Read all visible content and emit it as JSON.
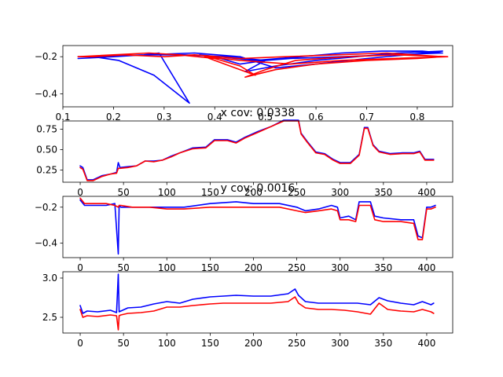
{
  "chart_data": [
    {
      "type": "line",
      "title": "",
      "xlabel": "",
      "ylabel": "",
      "xlim": [
        0.1,
        0.87
      ],
      "ylim": [
        -0.47,
        -0.14
      ],
      "xticks": [
        0.1,
        0.2,
        0.3,
        0.4,
        0.5,
        0.6,
        0.7,
        0.8
      ],
      "xticklabels": [
        "0.1",
        "0.2",
        "0.3",
        "0.4",
        "0.5",
        "0.6",
        "0.7",
        "0.8"
      ],
      "yticks": [
        -0.4,
        -0.2
      ],
      "yticklabels": [
        "−0.4",
        "−0.2"
      ],
      "grid": false,
      "series": [
        {
          "color": "#0000ff",
          "x": [
            0.13,
            0.2,
            0.26,
            0.29,
            0.35,
            0.28,
            0.21,
            0.16,
            0.26,
            0.36,
            0.45,
            0.52,
            0.6,
            0.7,
            0.78,
            0.85,
            0.76,
            0.68,
            0.6,
            0.52,
            0.46,
            0.5,
            0.45,
            0.4,
            0.37,
            0.48,
            0.57,
            0.65,
            0.73,
            0.81,
            0.85,
            0.75,
            0.65,
            0.55,
            0.5,
            0.42,
            0.34,
            0.26,
            0.2,
            0.15,
            0.13
          ],
          "y": [
            -0.21,
            -0.2,
            -0.19,
            -0.18,
            -0.45,
            -0.3,
            -0.22,
            -0.2,
            -0.19,
            -0.18,
            -0.2,
            -0.26,
            -0.24,
            -0.21,
            -0.19,
            -0.17,
            -0.18,
            -0.2,
            -0.22,
            -0.25,
            -0.28,
            -0.22,
            -0.24,
            -0.2,
            -0.19,
            -0.22,
            -0.2,
            -0.18,
            -0.17,
            -0.17,
            -0.18,
            -0.19,
            -0.2,
            -0.21,
            -0.22,
            -0.2,
            -0.19,
            -0.19,
            -0.2,
            -0.2,
            -0.2
          ]
        },
        {
          "color": "#ff0000",
          "x": [
            0.13,
            0.2,
            0.27,
            0.33,
            0.4,
            0.45,
            0.48,
            0.44,
            0.38,
            0.45,
            0.55,
            0.65,
            0.75,
            0.86,
            0.76,
            0.66,
            0.56,
            0.5,
            0.46,
            0.52,
            0.6,
            0.7,
            0.8,
            0.85,
            0.74,
            0.64,
            0.54,
            0.45,
            0.36,
            0.3,
            0.22,
            0.16,
            0.13
          ],
          "y": [
            -0.2,
            -0.19,
            -0.18,
            -0.19,
            -0.21,
            -0.25,
            -0.3,
            -0.26,
            -0.2,
            -0.22,
            -0.24,
            -0.22,
            -0.21,
            -0.2,
            -0.19,
            -0.2,
            -0.22,
            -0.27,
            -0.31,
            -0.27,
            -0.24,
            -0.22,
            -0.21,
            -0.2,
            -0.18,
            -0.19,
            -0.2,
            -0.21,
            -0.19,
            -0.2,
            -0.19,
            -0.2,
            -0.2
          ]
        }
      ]
    },
    {
      "type": "line",
      "title": "x cov: 0.0338",
      "xlabel": "",
      "ylabel": "",
      "xlim": [
        -20,
        430
      ],
      "ylim": [
        0.1,
        0.85
      ],
      "xticks": [
        0,
        50,
        100,
        150,
        200,
        250,
        300,
        350,
        400
      ],
      "xticklabels": [
        "0",
        "50",
        "100",
        "150",
        "200",
        "250",
        "300",
        "350",
        "400"
      ],
      "yticks": [
        0.25,
        0.5,
        0.75
      ],
      "yticklabels": [
        "0.25",
        "0.50",
        "0.75"
      ],
      "grid": false,
      "series": [
        {
          "color": "#0000ff",
          "x": [
            0,
            3,
            8,
            15,
            25,
            35,
            42,
            44,
            46,
            55,
            65,
            75,
            85,
            95,
            105,
            115,
            130,
            145,
            155,
            170,
            180,
            190,
            205,
            220,
            235,
            248,
            252,
            255,
            262,
            272,
            282,
            292,
            300,
            312,
            322,
            328,
            332,
            338,
            345,
            358,
            372,
            385,
            392,
            398,
            408
          ],
          "y": [
            0.3,
            0.28,
            0.13,
            0.13,
            0.18,
            0.2,
            0.22,
            0.34,
            0.28,
            0.29,
            0.3,
            0.36,
            0.36,
            0.37,
            0.42,
            0.46,
            0.52,
            0.53,
            0.62,
            0.62,
            0.59,
            0.65,
            0.72,
            0.78,
            0.86,
            0.86,
            0.86,
            0.7,
            0.6,
            0.47,
            0.45,
            0.38,
            0.34,
            0.34,
            0.44,
            0.77,
            0.77,
            0.56,
            0.48,
            0.45,
            0.46,
            0.46,
            0.48,
            0.38,
            0.38
          ]
        },
        {
          "color": "#ff0000",
          "x": [
            0,
            3,
            8,
            15,
            25,
            35,
            42,
            44,
            46,
            55,
            65,
            75,
            85,
            95,
            105,
            115,
            130,
            145,
            155,
            170,
            180,
            190,
            205,
            220,
            235,
            248,
            252,
            255,
            262,
            272,
            282,
            292,
            300,
            312,
            322,
            328,
            332,
            338,
            345,
            358,
            372,
            385,
            392,
            398,
            408
          ],
          "y": [
            0.28,
            0.26,
            0.12,
            0.12,
            0.17,
            0.2,
            0.21,
            0.27,
            0.27,
            0.28,
            0.3,
            0.36,
            0.35,
            0.37,
            0.41,
            0.46,
            0.51,
            0.52,
            0.61,
            0.61,
            0.58,
            0.64,
            0.71,
            0.78,
            0.85,
            0.85,
            0.85,
            0.69,
            0.59,
            0.46,
            0.44,
            0.37,
            0.33,
            0.33,
            0.43,
            0.76,
            0.76,
            0.55,
            0.47,
            0.44,
            0.45,
            0.45,
            0.47,
            0.37,
            0.37
          ]
        }
      ]
    },
    {
      "type": "line",
      "title": "y cov: 0.0016",
      "xlabel": "",
      "ylabel": "",
      "xlim": [
        -20,
        430
      ],
      "ylim": [
        -0.48,
        -0.14
      ],
      "xticks": [
        0,
        50,
        100,
        150,
        200,
        250,
        300,
        350,
        400
      ],
      "xticklabels": [
        "0",
        "50",
        "100",
        "150",
        "200",
        "250",
        "300",
        "350",
        "400"
      ],
      "yticks": [
        -0.4,
        -0.2
      ],
      "yticklabels": [
        "−0.4",
        "−0.2"
      ],
      "grid": false,
      "series": [
        {
          "color": "#0000ff",
          "x": [
            0,
            5,
            15,
            30,
            40,
            44,
            45,
            47,
            60,
            80,
            100,
            120,
            150,
            180,
            200,
            230,
            250,
            260,
            275,
            290,
            297,
            300,
            310,
            318,
            322,
            335,
            340,
            350,
            370,
            385,
            390,
            395,
            400,
            405,
            410
          ],
          "y": [
            -0.16,
            -0.19,
            -0.19,
            -0.19,
            -0.18,
            -0.46,
            -0.19,
            -0.2,
            -0.2,
            -0.2,
            -0.2,
            -0.2,
            -0.18,
            -0.17,
            -0.18,
            -0.18,
            -0.2,
            -0.22,
            -0.21,
            -0.19,
            -0.2,
            -0.26,
            -0.25,
            -0.27,
            -0.17,
            -0.17,
            -0.25,
            -0.26,
            -0.27,
            -0.27,
            -0.36,
            -0.37,
            -0.2,
            -0.2,
            -0.19
          ]
        },
        {
          "color": "#ff0000",
          "x": [
            0,
            5,
            15,
            30,
            40,
            44,
            45,
            47,
            60,
            80,
            100,
            120,
            150,
            180,
            200,
            230,
            250,
            260,
            275,
            290,
            297,
            300,
            310,
            318,
            322,
            335,
            340,
            350,
            370,
            385,
            390,
            395,
            400,
            405,
            410
          ],
          "y": [
            -0.15,
            -0.18,
            -0.18,
            -0.18,
            -0.19,
            -0.2,
            -0.19,
            -0.19,
            -0.2,
            -0.2,
            -0.21,
            -0.21,
            -0.2,
            -0.2,
            -0.2,
            -0.2,
            -0.22,
            -0.23,
            -0.22,
            -0.21,
            -0.22,
            -0.27,
            -0.27,
            -0.28,
            -0.19,
            -0.19,
            -0.27,
            -0.28,
            -0.28,
            -0.29,
            -0.38,
            -0.38,
            -0.21,
            -0.21,
            -0.2
          ]
        }
      ]
    },
    {
      "type": "line",
      "title": "",
      "xlabel": "",
      "ylabel": "",
      "xlim": [
        -20,
        430
      ],
      "ylim": [
        2.3,
        3.08
      ],
      "xticks": [
        0,
        50,
        100,
        150,
        200,
        250,
        300,
        350,
        400
      ],
      "xticklabels": [
        "0",
        "50",
        "100",
        "150",
        "200",
        "250",
        "300",
        "350",
        "400"
      ],
      "yticks": [
        2.5,
        3.0
      ],
      "yticklabels": [
        "2.5",
        "3.0"
      ],
      "grid": false,
      "series": [
        {
          "color": "#0000ff",
          "x": [
            0,
            3,
            8,
            20,
            35,
            42,
            44,
            45,
            47,
            55,
            70,
            85,
            100,
            115,
            130,
            150,
            165,
            180,
            200,
            220,
            240,
            248,
            252,
            260,
            275,
            290,
            305,
            320,
            335,
            345,
            355,
            370,
            385,
            395,
            405,
            408
          ],
          "y": [
            2.65,
            2.55,
            2.58,
            2.57,
            2.59,
            2.56,
            3.05,
            2.57,
            2.58,
            2.62,
            2.63,
            2.67,
            2.7,
            2.68,
            2.73,
            2.76,
            2.77,
            2.78,
            2.77,
            2.77,
            2.8,
            2.86,
            2.78,
            2.7,
            2.68,
            2.68,
            2.68,
            2.68,
            2.66,
            2.75,
            2.71,
            2.68,
            2.66,
            2.7,
            2.66,
            2.68
          ]
        },
        {
          "color": "#ff0000",
          "x": [
            0,
            3,
            8,
            20,
            35,
            42,
            44,
            45,
            47,
            55,
            70,
            85,
            100,
            115,
            130,
            150,
            165,
            180,
            200,
            220,
            240,
            248,
            252,
            260,
            275,
            290,
            305,
            320,
            335,
            345,
            355,
            370,
            385,
            395,
            405,
            408
          ],
          "y": [
            2.6,
            2.5,
            2.52,
            2.51,
            2.53,
            2.52,
            2.34,
            2.52,
            2.53,
            2.55,
            2.56,
            2.58,
            2.63,
            2.63,
            2.65,
            2.67,
            2.68,
            2.68,
            2.68,
            2.68,
            2.7,
            2.76,
            2.68,
            2.62,
            2.6,
            2.6,
            2.59,
            2.57,
            2.54,
            2.68,
            2.6,
            2.58,
            2.57,
            2.6,
            2.57,
            2.55
          ]
        }
      ]
    }
  ]
}
